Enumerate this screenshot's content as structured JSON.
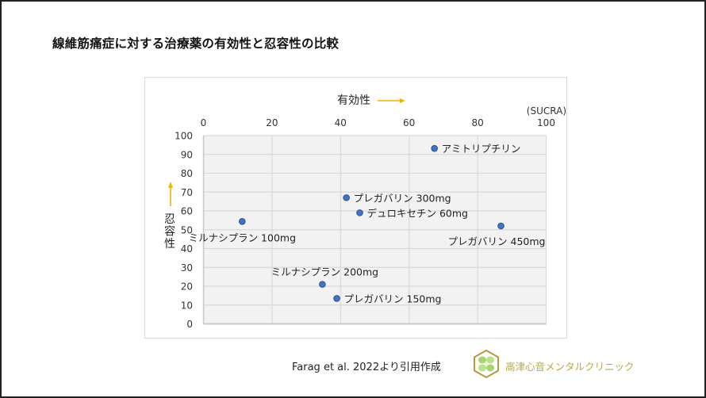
{
  "page": {
    "title": "線維筋痛症に対する治療薬の有効性と忍容性の比較",
    "credit": "Farag et al. 2022より引用作成",
    "clinic_name": "高津心音メンタルクリニック",
    "logo_icon": "hexagon-clover-logo-icon"
  },
  "colors": {
    "marker": "#4472c4",
    "marker_edge": "#2f4f8f",
    "arrow": "#f0b400",
    "plot_bg": "#f2f2f2",
    "grid": "#d9d9d9",
    "clinic_text": "#b8a84e"
  },
  "chart_data": {
    "type": "scatter",
    "title": "",
    "xlabel": "有効性",
    "xlabel_arrow": "→",
    "x_unit_label": "(SUCRA)",
    "ylabel": "忍容性",
    "ylabel_arrow": "↑",
    "xlim": [
      0,
      100
    ],
    "ylim": [
      0,
      100
    ],
    "x_ticks": [
      0,
      20,
      40,
      60,
      80,
      100
    ],
    "y_ticks": [
      0,
      10,
      20,
      30,
      40,
      50,
      60,
      70,
      80,
      90,
      100
    ],
    "x_axis_position": "top",
    "grid": true,
    "legend": "none",
    "points": [
      {
        "label": "アミトリプチリン",
        "x": 67.4,
        "y": 93.2,
        "label_pos": "right"
      },
      {
        "label": "プレガバリン 300mg",
        "x": 41.7,
        "y": 67.0,
        "label_pos": "right"
      },
      {
        "label": "デュロキセチン 60mg",
        "x": 45.6,
        "y": 59.0,
        "label_pos": "right"
      },
      {
        "label": "プレガバリン 450mg",
        "x": 86.8,
        "y": 52.0,
        "label_pos": "below-left"
      },
      {
        "label": "ミルナシプラン 100mg",
        "x": 11.3,
        "y": 54.4,
        "label_pos": "below"
      },
      {
        "label": "ミルナシプラン 200mg",
        "x": 34.7,
        "y": 21.0,
        "label_pos": "above"
      },
      {
        "label": "プレガバリン 150mg",
        "x": 38.9,
        "y": 13.5,
        "label_pos": "right"
      }
    ]
  }
}
